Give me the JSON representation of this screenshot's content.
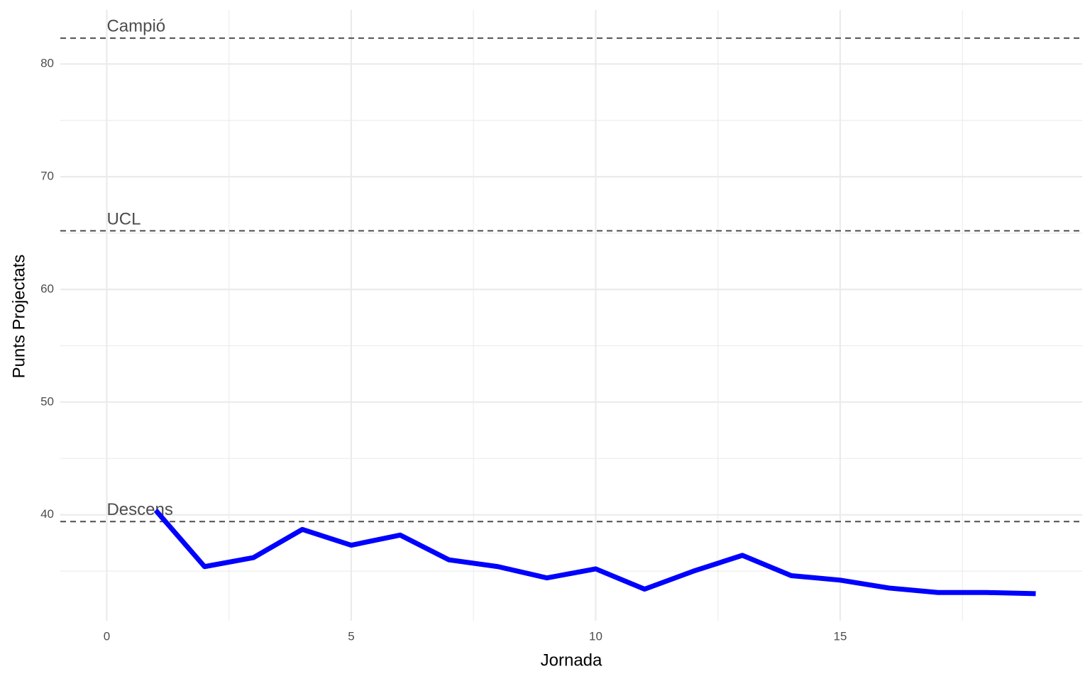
{
  "chart_data": {
    "type": "line",
    "x_label": "Jornada",
    "y_label": "Punts Projectats",
    "x": [
      1,
      2,
      3,
      4,
      5,
      6,
      7,
      8,
      9,
      10,
      11,
      12,
      13,
      14,
      15,
      16,
      17,
      18,
      19
    ],
    "values": [
      40.4,
      35.4,
      36.2,
      38.7,
      37.3,
      38.2,
      36.0,
      35.4,
      34.4,
      35.2,
      33.4,
      35.0,
      36.4,
      34.6,
      34.2,
      33.5,
      33.1,
      33.1,
      33.0
    ],
    "color": "#0000ff",
    "xlim": [
      -0.95,
      19.95
    ],
    "xticks": [
      0,
      5,
      10,
      15
    ],
    "xminor": [
      2.5,
      7.5,
      12.5,
      17.5
    ],
    "ylim": [
      30.6,
      84.8
    ],
    "yticks": [
      40,
      50,
      60,
      70,
      80
    ],
    "yminor": [
      35,
      45,
      55,
      65,
      75
    ],
    "grid": true,
    "hlines": [
      {
        "label": "Campió",
        "value": 82.3
      },
      {
        "label": "UCL",
        "value": 65.2
      },
      {
        "label": "Descens",
        "value": 39.4
      }
    ]
  }
}
